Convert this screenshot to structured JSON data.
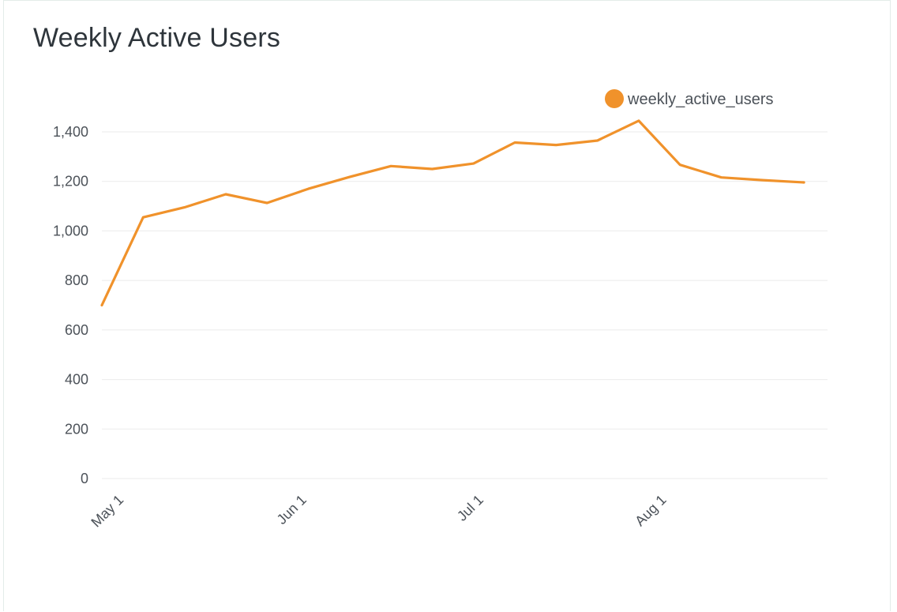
{
  "title": "Weekly Active Users",
  "colors": {
    "series": "#f0922b",
    "grid": "#ebebeb",
    "text": "#4c5259"
  },
  "chart_data": {
    "type": "line",
    "title": "Weekly Active Users",
    "xlabel": "",
    "ylabel": "",
    "ylim": [
      0,
      1400
    ],
    "yticks": [
      0,
      200,
      400,
      600,
      800,
      1000,
      1200,
      1400
    ],
    "ytick_labels": [
      "0",
      "200",
      "400",
      "600",
      "800",
      "1,000",
      "1,200",
      "1,400"
    ],
    "xlim": [
      "2021-04-28",
      "2021-08-29"
    ],
    "xticks": [
      {
        "date": "2021-05-01",
        "label": "May 1"
      },
      {
        "date": "2021-06-01",
        "label": "Jun 1"
      },
      {
        "date": "2021-07-01",
        "label": "Jul 1"
      },
      {
        "date": "2021-08-01",
        "label": "Aug 1"
      }
    ],
    "grid": true,
    "legend_position": "top-right",
    "series": [
      {
        "name": "weekly_active_users",
        "x": [
          "2021-04-28",
          "2021-05-05",
          "2021-05-12",
          "2021-05-19",
          "2021-05-26",
          "2021-06-02",
          "2021-06-09",
          "2021-06-16",
          "2021-06-23",
          "2021-06-30",
          "2021-07-07",
          "2021-07-14",
          "2021-07-21",
          "2021-07-28",
          "2021-08-04",
          "2021-08-11",
          "2021-08-18",
          "2021-08-25"
        ],
        "y": [
          700,
          1055,
          1095,
          1148,
          1113,
          1170,
          1218,
          1262,
          1250,
          1272,
          1357,
          1347,
          1365,
          1445,
          1267,
          1216,
          1205,
          1196
        ]
      }
    ]
  }
}
